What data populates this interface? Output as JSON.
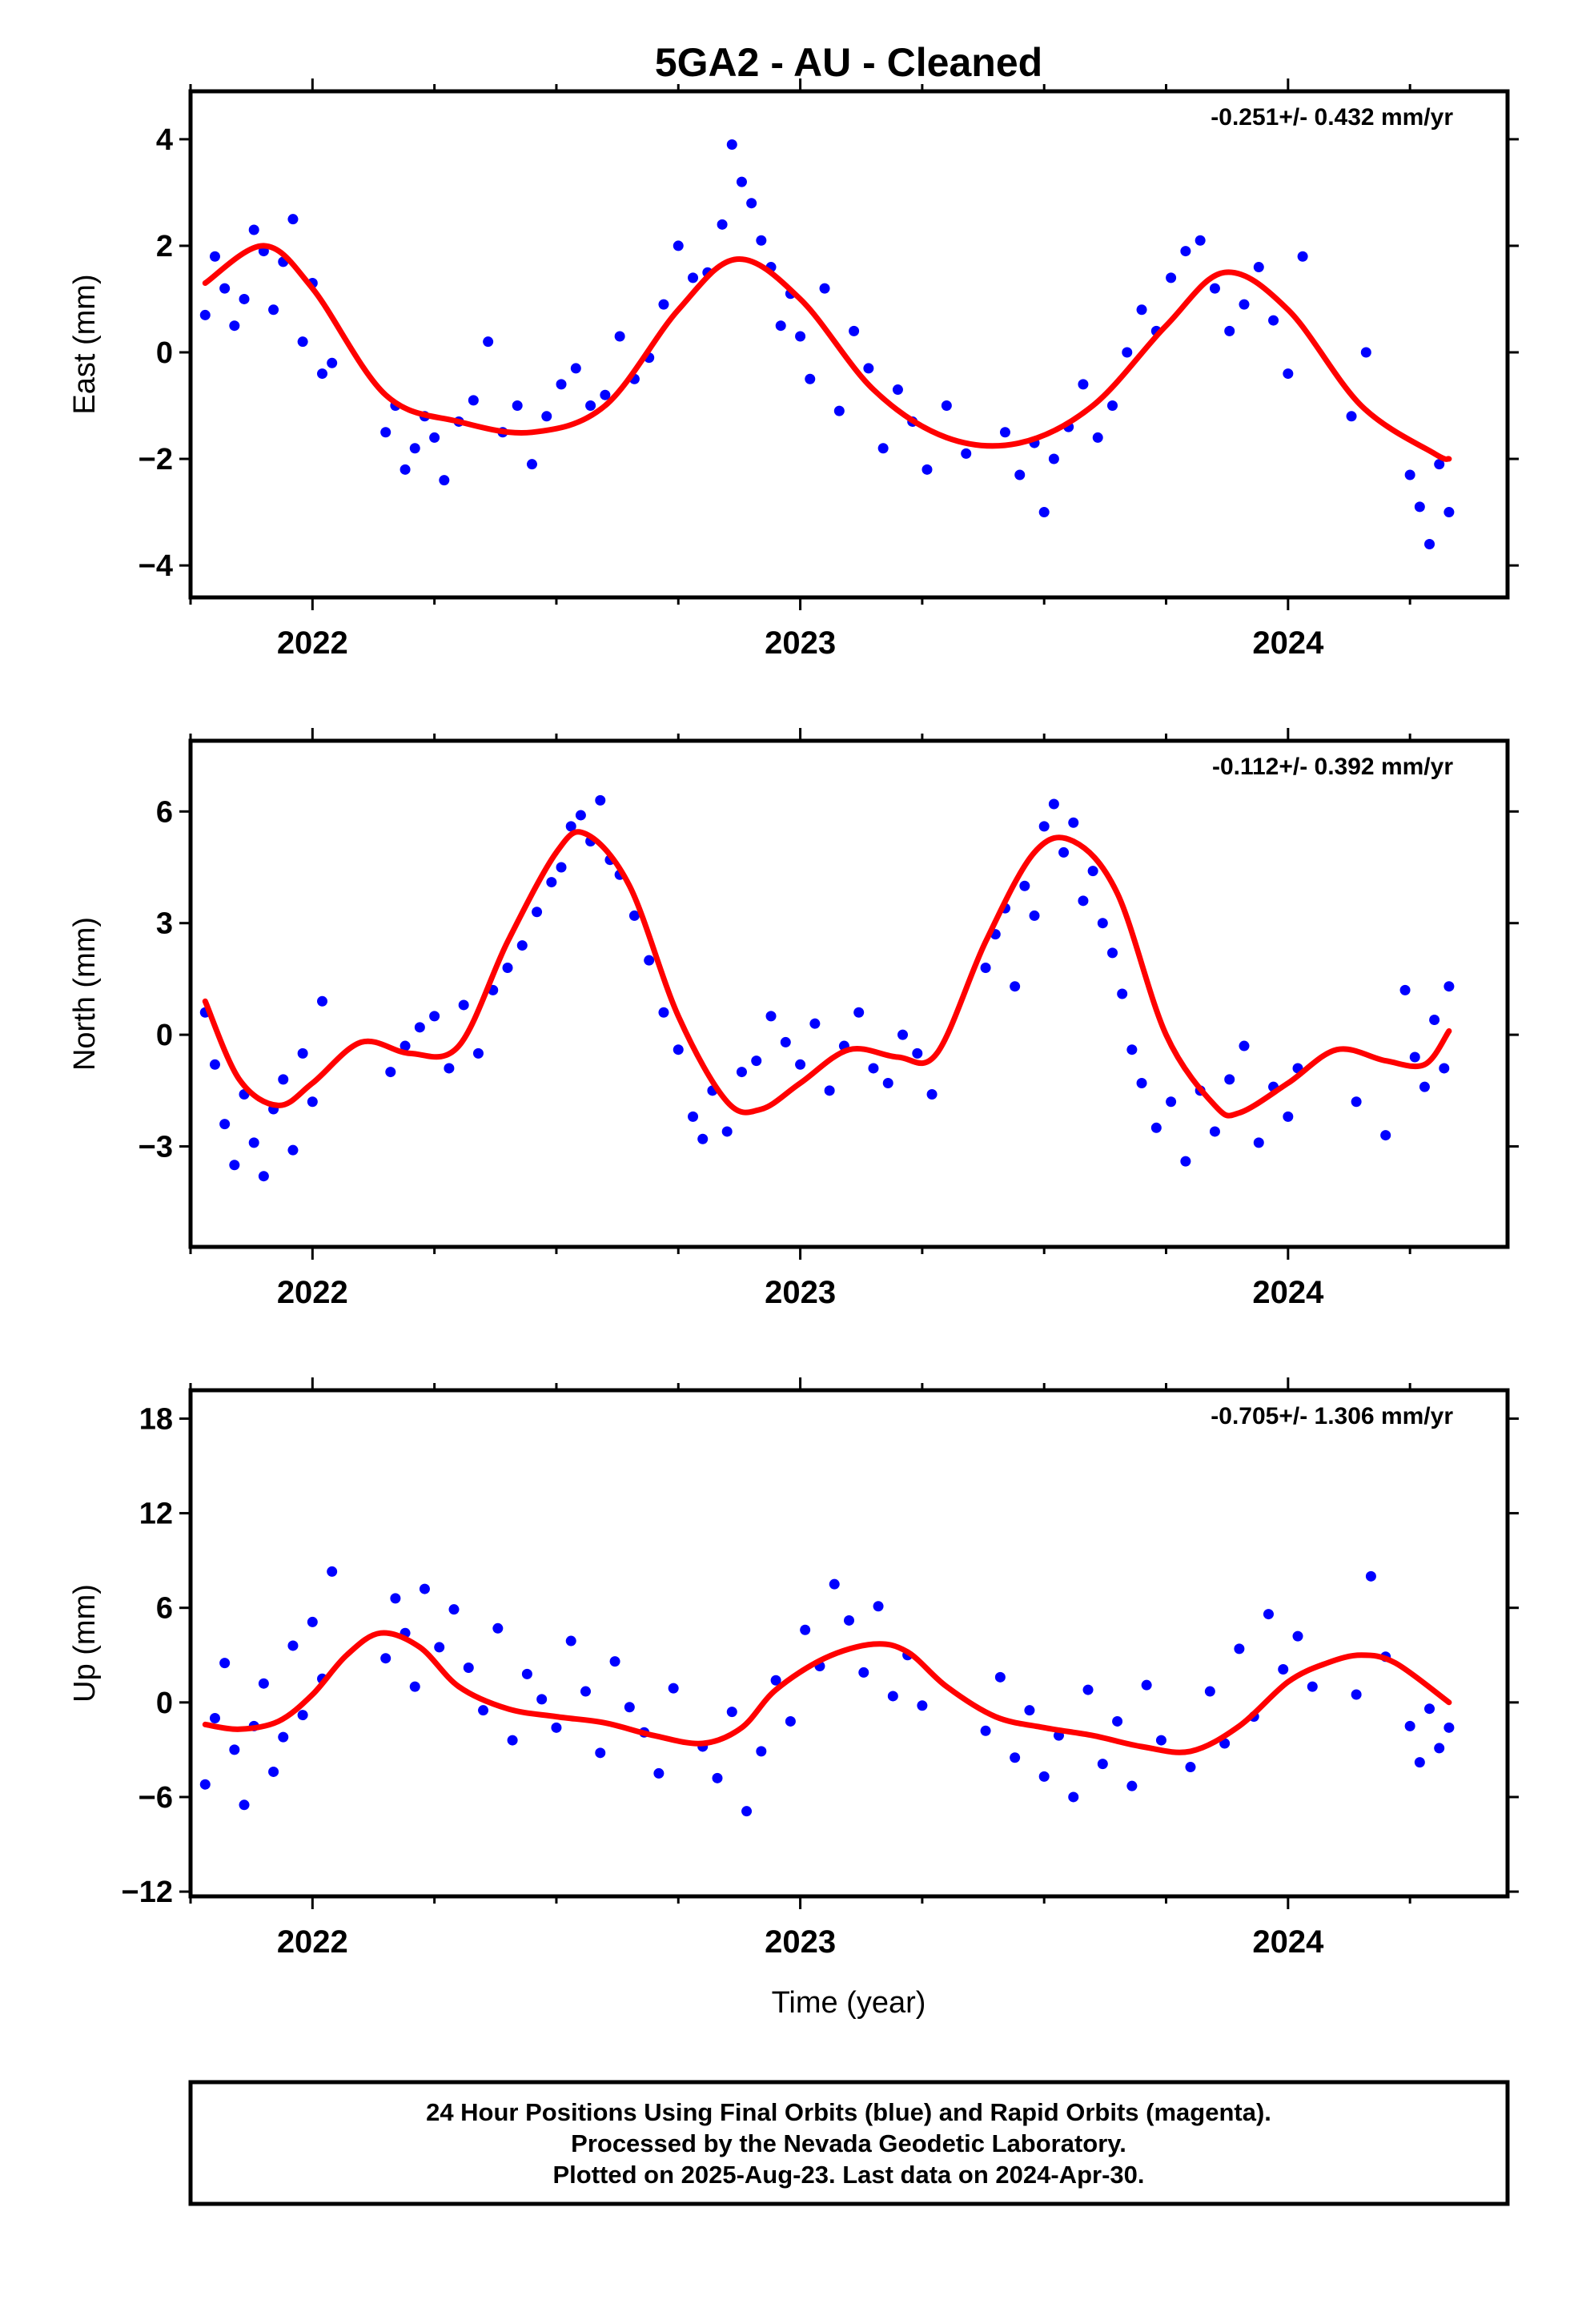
{
  "title": "5GA2  - AU - Cleaned",
  "xlabel": "Time (year)",
  "footer": {
    "lines": [
      "24 Hour Positions Using Final Orbits (blue) and Rapid Orbits (magenta).",
      "Processed by the Nevada Geodetic Laboratory.",
      "Plotted on 2025-Aug-23. Last data on 2024-Apr-30."
    ]
  },
  "colors": {
    "final_points": "#0000ff",
    "fit_line": "#ff0000",
    "frame": "#000000"
  },
  "chart_data": [
    {
      "type": "scatter",
      "title": "",
      "ylabel": "East (mm)",
      "rate_text": "-0.251+/- 0.432 mm/yr",
      "xlim": [
        2021.75,
        2024.45
      ],
      "ylim": [
        -4.6,
        4.9
      ],
      "yticks": [
        -4,
        -2,
        0,
        2,
        4
      ],
      "ytick_labels": [
        "−4",
        "−2",
        "0",
        "2",
        "4"
      ],
      "xticks": [
        2022,
        2023,
        2024
      ],
      "xtick_labels": [
        "2022",
        "2023",
        "2024"
      ],
      "fit": {
        "name": "",
        "x": [
          2021.78,
          2021.9,
          2022.0,
          2022.15,
          2022.3,
          2022.45,
          2022.6,
          2022.75,
          2022.87,
          2023.0,
          2023.15,
          2023.3,
          2023.45,
          2023.6,
          2023.75,
          2023.87,
          2024.0,
          2024.15,
          2024.3,
          2024.33
        ],
        "y": [
          1.3,
          2.0,
          1.2,
          -0.8,
          -1.3,
          -1.5,
          -1.0,
          0.8,
          1.75,
          1.0,
          -0.7,
          -1.6,
          -1.7,
          -1.0,
          0.5,
          1.5,
          0.8,
          -1.0,
          -1.9,
          -2.0
        ]
      },
      "series": [
        {
          "name": "",
          "x": [
            2021.78,
            2021.8,
            2021.82,
            2021.84,
            2021.86,
            2021.88,
            2021.9,
            2021.92,
            2021.94,
            2021.96,
            2021.98,
            2022.0,
            2022.02,
            2022.04,
            2022.15,
            2022.17,
            2022.19,
            2022.21,
            2022.23,
            2022.25,
            2022.27,
            2022.3,
            2022.33,
            2022.36,
            2022.39,
            2022.42,
            2022.45,
            2022.48,
            2022.51,
            2022.54,
            2022.57,
            2022.6,
            2022.63,
            2022.66,
            2022.69,
            2022.72,
            2022.75,
            2022.78,
            2022.81,
            2022.84,
            2022.86,
            2022.88,
            2022.9,
            2022.92,
            2022.94,
            2022.96,
            2022.98,
            2023.0,
            2023.02,
            2023.05,
            2023.08,
            2023.11,
            2023.14,
            2023.17,
            2023.2,
            2023.23,
            2023.26,
            2023.3,
            2023.34,
            2023.42,
            2023.45,
            2023.48,
            2023.5,
            2023.52,
            2023.55,
            2023.58,
            2023.61,
            2023.64,
            2023.67,
            2023.7,
            2023.73,
            2023.76,
            2023.79,
            2023.82,
            2023.85,
            2023.88,
            2023.91,
            2023.94,
            2023.97,
            2024.0,
            2024.03,
            2024.13,
            2024.16,
            2024.25,
            2024.27,
            2024.29,
            2024.31,
            2024.33
          ],
          "y": [
            0.7,
            1.8,
            1.2,
            0.5,
            1.0,
            2.3,
            1.9,
            0.8,
            1.7,
            2.5,
            0.2,
            1.3,
            -0.4,
            -0.2,
            -1.5,
            -1.0,
            -2.2,
            -1.8,
            -1.2,
            -1.6,
            -2.4,
            -1.3,
            -0.9,
            0.2,
            -1.5,
            -1.0,
            -2.1,
            -1.2,
            -0.6,
            -0.3,
            -1.0,
            -0.8,
            0.3,
            -0.5,
            -0.1,
            0.9,
            2.0,
            1.4,
            1.5,
            2.4,
            3.9,
            3.2,
            2.8,
            2.1,
            1.6,
            0.5,
            1.1,
            0.3,
            -0.5,
            1.2,
            -1.1,
            0.4,
            -0.3,
            -1.8,
            -0.7,
            -1.3,
            -2.2,
            -1.0,
            -1.9,
            -1.5,
            -2.3,
            -1.7,
            -3.0,
            -2.0,
            -1.4,
            -0.6,
            -1.6,
            -1.0,
            0.0,
            0.8,
            0.4,
            1.4,
            1.9,
            2.1,
            1.2,
            0.4,
            0.9,
            1.6,
            0.6,
            -0.4,
            1.8,
            -1.2,
            0.0,
            -2.3,
            -2.9,
            -3.6,
            -2.1,
            -3.0
          ]
        }
      ]
    },
    {
      "type": "scatter",
      "title": "",
      "ylabel": "North (mm)",
      "rate_text": "-0.112+/- 0.392 mm/yr",
      "xlim": [
        2021.75,
        2024.45
      ],
      "ylim": [
        -5.7,
        7.9
      ],
      "yticks": [
        -3,
        0,
        3,
        6
      ],
      "ytick_labels": [
        "−3",
        "0",
        "3",
        "6"
      ],
      "xticks": [
        2022,
        2023,
        2024
      ],
      "xtick_labels": [
        "2022",
        "2023",
        "2024"
      ],
      "fit": {
        "name": "",
        "x": [
          2021.78,
          2021.85,
          2021.93,
          2022.0,
          2022.1,
          2022.2,
          2022.3,
          2022.4,
          2022.5,
          2022.56,
          2022.65,
          2022.75,
          2022.85,
          2022.92,
          2023.0,
          2023.1,
          2023.2,
          2023.28,
          2023.38,
          2023.48,
          2023.56,
          2023.65,
          2023.75,
          2023.85,
          2023.9,
          2024.0,
          2024.1,
          2024.2,
          2024.28,
          2024.33
        ],
        "y": [
          0.9,
          -1.2,
          -1.9,
          -1.3,
          -0.2,
          -0.5,
          -0.3,
          2.5,
          4.9,
          5.4,
          4.0,
          0.5,
          -1.8,
          -2.0,
          -1.3,
          -0.4,
          -0.6,
          -0.5,
          2.5,
          4.9,
          5.2,
          3.8,
          0.0,
          -1.9,
          -2.1,
          -1.3,
          -0.4,
          -0.7,
          -0.8,
          0.1
        ]
      },
      "series": [
        {
          "name": "",
          "x": [
            2021.78,
            2021.8,
            2021.82,
            2021.84,
            2021.86,
            2021.88,
            2021.9,
            2021.92,
            2021.94,
            2021.96,
            2021.98,
            2022.0,
            2022.02,
            2022.16,
            2022.19,
            2022.22,
            2022.25,
            2022.28,
            2022.31,
            2022.34,
            2022.37,
            2022.4,
            2022.43,
            2022.46,
            2022.49,
            2022.51,
            2022.53,
            2022.55,
            2022.57,
            2022.59,
            2022.61,
            2022.63,
            2022.66,
            2022.69,
            2022.72,
            2022.75,
            2022.78,
            2022.8,
            2022.82,
            2022.85,
            2022.88,
            2022.91,
            2022.94,
            2022.97,
            2023.0,
            2023.03,
            2023.06,
            2023.09,
            2023.12,
            2023.15,
            2023.18,
            2023.21,
            2023.24,
            2023.27,
            2023.38,
            2023.4,
            2023.42,
            2023.44,
            2023.46,
            2023.48,
            2023.5,
            2023.52,
            2023.54,
            2023.56,
            2023.58,
            2023.6,
            2023.62,
            2023.64,
            2023.66,
            2023.68,
            2023.7,
            2023.73,
            2023.76,
            2023.79,
            2023.82,
            2023.85,
            2023.88,
            2023.91,
            2023.94,
            2023.97,
            2024.0,
            2024.02,
            2024.14,
            2024.2,
            2024.24,
            2024.26,
            2024.28,
            2024.3,
            2024.32,
            2024.33
          ],
          "y": [
            0.6,
            -0.8,
            -2.4,
            -3.5,
            -1.6,
            -2.9,
            -3.8,
            -2.0,
            -1.2,
            -3.1,
            -0.5,
            -1.8,
            0.9,
            -1.0,
            -0.3,
            0.2,
            0.5,
            -0.9,
            0.8,
            -0.5,
            1.2,
            1.8,
            2.4,
            3.3,
            4.1,
            4.5,
            5.6,
            5.9,
            5.2,
            6.3,
            4.7,
            4.3,
            3.2,
            2.0,
            0.6,
            -0.4,
            -2.2,
            -2.8,
            -1.5,
            -2.6,
            -1.0,
            -0.7,
            0.5,
            -0.2,
            -0.8,
            0.3,
            -1.5,
            -0.3,
            0.6,
            -0.9,
            -1.3,
            0.0,
            -0.5,
            -1.6,
            1.8,
            2.7,
            3.4,
            1.3,
            4.0,
            3.2,
            5.6,
            6.2,
            4.9,
            5.7,
            3.6,
            4.4,
            3.0,
            2.2,
            1.1,
            -0.4,
            -1.3,
            -2.5,
            -1.8,
            -3.4,
            -1.5,
            -2.6,
            -1.2,
            -0.3,
            -2.9,
            -1.4,
            -2.2,
            -0.9,
            -1.8,
            -2.7,
            1.2,
            -0.6,
            -1.4,
            0.4,
            -0.9,
            1.3
          ]
        }
      ]
    },
    {
      "type": "scatter",
      "title": "",
      "ylabel": "Up (mm)",
      "rate_text": "-0.705+/- 1.306 mm/yr",
      "xlim": [
        2021.75,
        2024.45
      ],
      "ylim": [
        -12.3,
        19.8
      ],
      "yticks": [
        -12,
        -6,
        0,
        6,
        12,
        18
      ],
      "ytick_labels": [
        "−12",
        "−6",
        "0",
        "6",
        "12",
        "18"
      ],
      "xticks": [
        2022,
        2023,
        2024
      ],
      "xtick_labels": [
        "2022",
        "2023",
        "2024"
      ],
      "fit": {
        "name": "",
        "x": [
          2021.78,
          2021.85,
          2021.93,
          2022.0,
          2022.07,
          2022.14,
          2022.22,
          2022.3,
          2022.4,
          2022.5,
          2022.6,
          2022.7,
          2022.8,
          2022.88,
          2022.95,
          2023.05,
          2023.15,
          2023.22,
          2023.3,
          2023.4,
          2023.5,
          2023.6,
          2023.7,
          2023.8,
          2023.9,
          2024.0,
          2024.08,
          2024.15,
          2024.22,
          2024.33
        ],
        "y": [
          -1.4,
          -1.7,
          -1.2,
          0.5,
          3.0,
          4.4,
          3.5,
          1.0,
          -0.4,
          -0.9,
          -1.3,
          -2.1,
          -2.6,
          -1.6,
          0.8,
          2.8,
          3.7,
          3.2,
          1.0,
          -0.9,
          -1.6,
          -2.1,
          -2.8,
          -3.1,
          -1.5,
          1.3,
          2.5,
          3.0,
          2.5,
          0.0
        ]
      },
      "series": [
        {
          "name": "",
          "x": [
            2021.78,
            2021.8,
            2021.82,
            2021.84,
            2021.86,
            2021.88,
            2021.9,
            2021.92,
            2021.94,
            2021.96,
            2021.98,
            2022.0,
            2022.02,
            2022.04,
            2022.15,
            2022.17,
            2022.19,
            2022.21,
            2022.23,
            2022.26,
            2022.29,
            2022.32,
            2022.35,
            2022.38,
            2022.41,
            2022.44,
            2022.47,
            2022.5,
            2022.53,
            2022.56,
            2022.59,
            2022.62,
            2022.65,
            2022.68,
            2022.71,
            2022.74,
            2022.8,
            2022.83,
            2022.86,
            2022.89,
            2022.92,
            2022.95,
            2022.98,
            2023.01,
            2023.04,
            2023.07,
            2023.1,
            2023.13,
            2023.16,
            2023.19,
            2023.22,
            2023.25,
            2023.38,
            2023.41,
            2023.44,
            2023.47,
            2023.5,
            2023.53,
            2023.56,
            2023.59,
            2023.62,
            2023.65,
            2023.68,
            2023.71,
            2023.74,
            2023.8,
            2023.84,
            2023.87,
            2023.9,
            2023.93,
            2023.96,
            2023.99,
            2024.02,
            2024.05,
            2024.14,
            2024.17,
            2024.2,
            2024.25,
            2024.27,
            2024.29,
            2024.31,
            2024.33
          ],
          "y": [
            -5.2,
            -1.0,
            2.5,
            -3.0,
            -6.5,
            -1.5,
            1.2,
            -4.4,
            -2.2,
            3.6,
            -0.8,
            5.1,
            1.5,
            8.3,
            2.8,
            6.6,
            4.4,
            1.0,
            7.2,
            3.5,
            5.9,
            2.2,
            -0.5,
            4.7,
            -2.4,
            1.8,
            0.2,
            -1.6,
            3.9,
            0.7,
            -3.2,
            2.6,
            -0.3,
            -1.9,
            -4.5,
            0.9,
            -2.8,
            -4.8,
            -0.6,
            -6.9,
            -3.1,
            1.4,
            -1.2,
            4.6,
            2.3,
            7.5,
            5.2,
            1.9,
            6.1,
            0.4,
            3.0,
            -0.2,
            -1.8,
            1.6,
            -3.5,
            -0.5,
            -4.7,
            -2.1,
            -6.0,
            0.8,
            -3.9,
            -1.2,
            -5.3,
            1.1,
            -2.4,
            -4.1,
            0.7,
            -2.6,
            3.4,
            -0.9,
            5.6,
            2.1,
            4.2,
            1.0,
            0.5,
            8.0,
            2.9,
            -1.5,
            -3.8,
            -0.4,
            -2.9,
            -1.6
          ]
        }
      ]
    }
  ]
}
